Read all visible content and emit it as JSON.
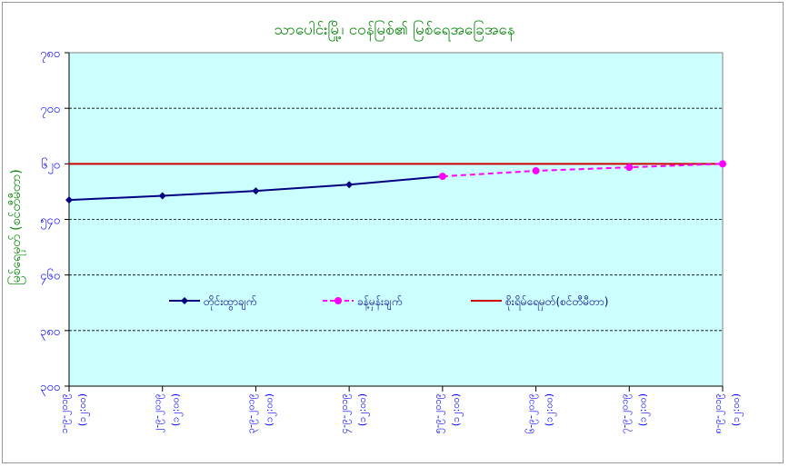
{
  "chart_data": {
    "type": "line",
    "title": "သာပေါင်းမြို့၊ ငဝန်မြစ်၏  မြစ်ရေအခြေအနေ",
    "ylabel": "မြစ်ရေမှတ် (စင်တီမီတာ)",
    "xlabel": "",
    "ylim": [
      300,
      780
    ],
    "yticks": [
      "၃၀၀",
      "၃၈၀",
      "၄၆၀",
      "၅၄၀",
      "၆၂၀",
      "၇၀၀",
      "၇၈၀"
    ],
    "ytick_values": [
      300,
      380,
      460,
      540,
      620,
      700,
      780
    ],
    "categories": [
      [
        "၁-၉-၂၀၁၉",
        "(၁၂:၀၀)"
      ],
      [
        "၂-၉-၂၀၁၉",
        "(၁၂:၀၀)"
      ],
      [
        "၃-၉-၂၀၁၉",
        "(၁၂:၀၀)"
      ],
      [
        "၄-၉-၂၀၁၉",
        "(၁၂:၀၀)"
      ],
      [
        "၅-၉-၂၀၁၉",
        "(၁၂:၀၀)"
      ],
      [
        "၆-၉-၂၀၁၉",
        "(၁၂:၀၀)"
      ],
      [
        "၇-၉-၂၀၁၉",
        "(၁၂:၀၀)"
      ],
      [
        "၈-၉-၂၀၁၉",
        "(၁၂:၀၀)"
      ]
    ],
    "series": [
      {
        "name": "တိုင်းထွာချက်",
        "color": "#000080",
        "style": "solid",
        "marker": "diamond",
        "values": [
          568,
          574,
          581,
          590,
          602,
          null,
          null,
          null
        ]
      },
      {
        "name": "ခန့်မှန်းချက်",
        "color": "#ff00ff",
        "style": "dashed",
        "marker": "circle",
        "values": [
          null,
          null,
          null,
          null,
          602,
          610,
          615,
          620
        ]
      },
      {
        "name": "စိုးရိမ်ရေမှတ်(စင်တီမီတာ)",
        "color": "#cc0000",
        "style": "solid",
        "marker": "none",
        "values": [
          620,
          620,
          620,
          620,
          620,
          620,
          620,
          620
        ]
      }
    ],
    "grid": "horizontal-dashed",
    "legend": "center",
    "colors": {
      "plot_bg": "#ccffff",
      "title": "#008000",
      "axis_text": "#0000ff"
    }
  }
}
